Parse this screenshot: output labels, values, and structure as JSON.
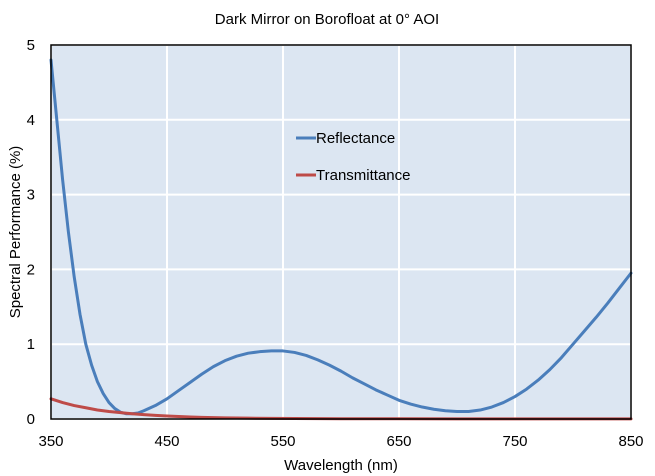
{
  "chart_data": {
    "type": "line",
    "title": "Dark Mirror on Borofloat at 0° AOI",
    "xlabel": "Wavelength (nm)",
    "ylabel": "Spectral Performance (%)",
    "xlim": [
      350,
      850
    ],
    "ylim": [
      0,
      5
    ],
    "xticks": [
      350,
      450,
      550,
      650,
      750,
      850
    ],
    "yticks": [
      0,
      1,
      2,
      3,
      4,
      5
    ],
    "grid": true,
    "legend_position": "center",
    "series": [
      {
        "name": "Reflectance",
        "color": "#4a7ebb",
        "x": [
          350,
          355,
          360,
          365,
          370,
          375,
          380,
          385,
          390,
          395,
          400,
          405,
          410,
          415,
          420,
          425,
          430,
          440,
          450,
          460,
          470,
          480,
          490,
          500,
          510,
          520,
          530,
          540,
          550,
          560,
          570,
          580,
          590,
          600,
          610,
          620,
          630,
          640,
          650,
          660,
          670,
          680,
          690,
          700,
          710,
          720,
          730,
          740,
          750,
          760,
          770,
          780,
          790,
          800,
          810,
          820,
          830,
          840,
          850
        ],
        "y": [
          4.8,
          4.0,
          3.2,
          2.5,
          1.9,
          1.4,
          1.0,
          0.72,
          0.5,
          0.34,
          0.22,
          0.14,
          0.09,
          0.07,
          0.07,
          0.08,
          0.11,
          0.18,
          0.27,
          0.38,
          0.49,
          0.6,
          0.7,
          0.78,
          0.84,
          0.88,
          0.9,
          0.91,
          0.91,
          0.89,
          0.85,
          0.79,
          0.72,
          0.64,
          0.55,
          0.47,
          0.39,
          0.32,
          0.25,
          0.2,
          0.16,
          0.13,
          0.11,
          0.1,
          0.1,
          0.12,
          0.16,
          0.22,
          0.3,
          0.4,
          0.52,
          0.66,
          0.82,
          1.0,
          1.18,
          1.36,
          1.55,
          1.75,
          1.95
        ]
      },
      {
        "name": "Transmittance",
        "color": "#be4b48",
        "x": [
          350,
          360,
          370,
          380,
          390,
          400,
          410,
          420,
          430,
          440,
          450,
          460,
          470,
          480,
          490,
          500,
          520,
          540,
          560,
          580,
          600,
          650,
          700,
          750,
          800,
          850
        ],
        "y": [
          0.27,
          0.22,
          0.18,
          0.15,
          0.12,
          0.1,
          0.085,
          0.07,
          0.058,
          0.048,
          0.04,
          0.033,
          0.027,
          0.022,
          0.018,
          0.015,
          0.011,
          0.008,
          0.006,
          0.005,
          0.004,
          0.003,
          0.002,
          0.002,
          0.001,
          0.001
        ]
      }
    ]
  }
}
